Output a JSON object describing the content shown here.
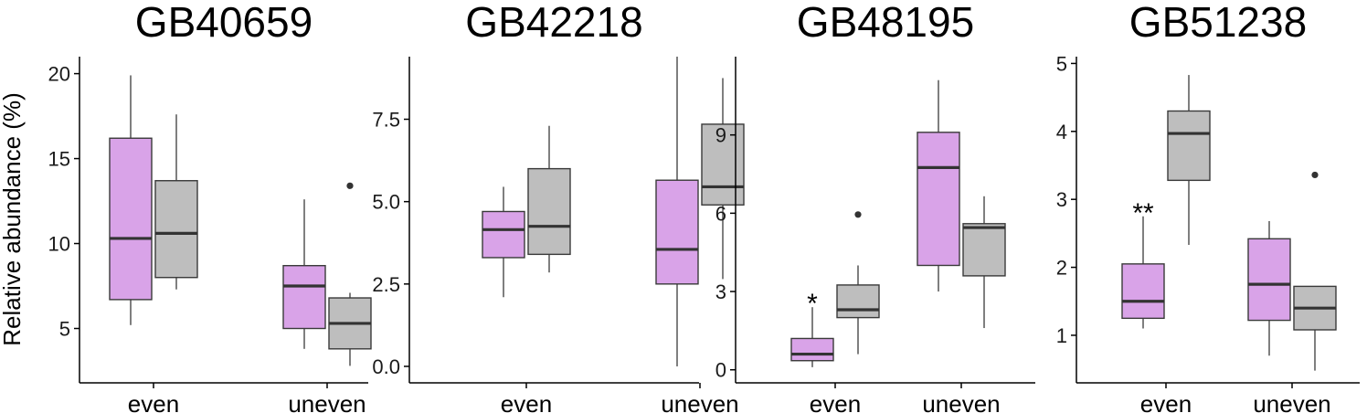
{
  "y_axis_label": "Relative abundance (%)",
  "colors": {
    "even_group": "#d9a3e8",
    "uneven_group": "#bebebe"
  },
  "chart_data": [
    {
      "type": "boxplot",
      "title": "GB40659",
      "categories": [
        "even",
        "uneven"
      ],
      "ylim": [
        1.8,
        21.0
      ],
      "yticks": [
        5,
        10,
        15,
        20
      ],
      "tick_labels": [
        "5",
        "10",
        "15",
        "20"
      ],
      "series": [
        {
          "name": "purple",
          "boxes": [
            {
              "category": "even",
              "min": 5.2,
              "q1": 6.7,
              "median": 10.3,
              "q3": 16.2,
              "max": 19.9,
              "outliers": []
            },
            {
              "category": "uneven",
              "min": 3.8,
              "q1": 5.0,
              "median": 7.5,
              "q3": 8.7,
              "max": 12.6,
              "outliers": []
            }
          ]
        },
        {
          "name": "grey",
          "boxes": [
            {
              "category": "even",
              "min": 7.3,
              "q1": 8.0,
              "median": 10.6,
              "q3": 13.7,
              "max": 17.6,
              "outliers": []
            },
            {
              "category": "uneven",
              "min": 2.8,
              "q1": 3.8,
              "median": 5.3,
              "q3": 6.8,
              "max": 7.1,
              "outliers": [
                13.4
              ]
            }
          ]
        }
      ],
      "annotations": []
    },
    {
      "type": "boxplot",
      "title": "GB42218",
      "categories": [
        "even",
        "uneven"
      ],
      "ylim": [
        -0.5,
        9.4
      ],
      "yticks": [
        0,
        2.5,
        5,
        7.5
      ],
      "tick_labels": [
        "0.0",
        "2.5",
        "5.0",
        "7.5"
      ],
      "series": [
        {
          "name": "purple",
          "boxes": [
            {
              "category": "even",
              "min": 2.1,
              "q1": 3.3,
              "median": 4.15,
              "q3": 4.7,
              "max": 5.45,
              "outliers": []
            },
            {
              "category": "uneven",
              "min": 0.0,
              "q1": 2.5,
              "median": 3.55,
              "q3": 5.65,
              "max": 9.4,
              "outliers": []
            }
          ]
        },
        {
          "name": "grey",
          "boxes": [
            {
              "category": "even",
              "min": 2.85,
              "q1": 3.4,
              "median": 4.25,
              "q3": 6.0,
              "max": 7.3,
              "outliers": []
            },
            {
              "category": "uneven",
              "min": 2.65,
              "q1": 4.9,
              "median": 5.45,
              "q3": 7.35,
              "max": 8.75,
              "outliers": []
            }
          ]
        }
      ],
      "annotations": []
    },
    {
      "type": "boxplot",
      "title": "GB48195",
      "categories": [
        "even",
        "uneven"
      ],
      "ylim": [
        -0.5,
        12.0
      ],
      "yticks": [
        0,
        3,
        6,
        9
      ],
      "tick_labels": [
        "0",
        "3",
        "6",
        "9"
      ],
      "series": [
        {
          "name": "purple",
          "boxes": [
            {
              "category": "even",
              "min": 0.1,
              "q1": 0.35,
              "median": 0.6,
              "q3": 1.2,
              "max": 2.4,
              "outliers": []
            },
            {
              "category": "uneven",
              "min": 3.0,
              "q1": 4.0,
              "median": 7.75,
              "q3": 9.1,
              "max": 11.1,
              "outliers": []
            }
          ]
        },
        {
          "name": "grey",
          "boxes": [
            {
              "category": "even",
              "min": 0.6,
              "q1": 2.0,
              "median": 2.3,
              "q3": 3.25,
              "max": 4.0,
              "outliers": [
                5.95
              ]
            },
            {
              "category": "uneven",
              "min": 1.6,
              "q1": 3.6,
              "median": 5.45,
              "q3": 5.6,
              "max": 6.65,
              "outliers": []
            }
          ]
        }
      ],
      "annotations": [
        {
          "category": "even",
          "text": "*"
        }
      ]
    },
    {
      "type": "boxplot",
      "title": "GB51238",
      "categories": [
        "even",
        "uneven"
      ],
      "ylim": [
        0.3,
        5.1
      ],
      "yticks": [
        1,
        2,
        3,
        4,
        5
      ],
      "tick_labels": [
        "1",
        "2",
        "3",
        "4",
        "5"
      ],
      "series": [
        {
          "name": "purple",
          "boxes": [
            {
              "category": "even",
              "min": 1.1,
              "q1": 1.25,
              "median": 1.5,
              "q3": 2.05,
              "max": 2.75,
              "outliers": []
            },
            {
              "category": "uneven",
              "min": 0.7,
              "q1": 1.22,
              "median": 1.75,
              "q3": 2.42,
              "max": 2.68,
              "outliers": []
            }
          ]
        },
        {
          "name": "grey",
          "boxes": [
            {
              "category": "even",
              "min": 2.33,
              "q1": 3.28,
              "median": 3.97,
              "q3": 4.3,
              "max": 4.83,
              "outliers": []
            },
            {
              "category": "uneven",
              "min": 0.48,
              "q1": 1.08,
              "median": 1.4,
              "q3": 1.72,
              "max": 1.72,
              "outliers": [
                3.36
              ]
            }
          ]
        }
      ],
      "annotations": [
        {
          "category": "even",
          "text": "**"
        }
      ]
    }
  ]
}
